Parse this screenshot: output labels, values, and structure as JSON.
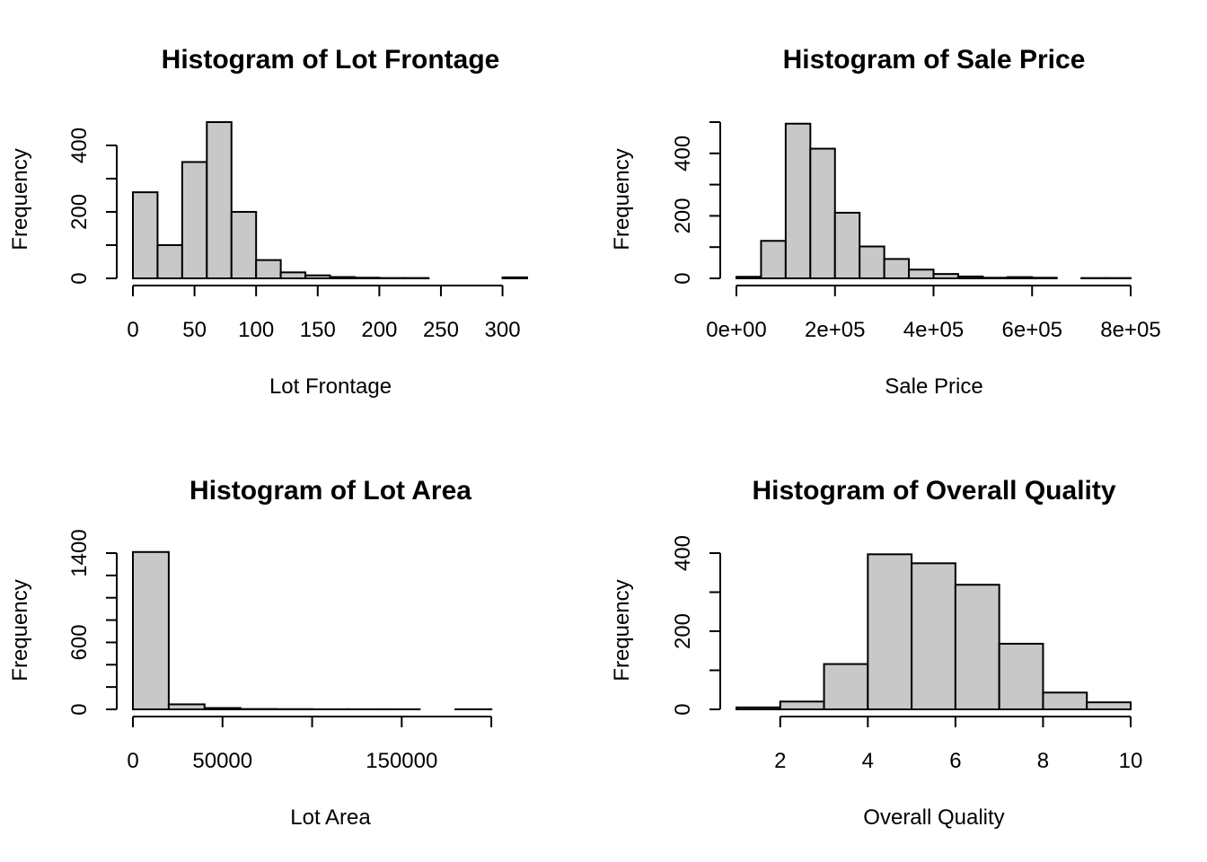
{
  "colors": {
    "bar_fill": "#c8c8c8",
    "bar_stroke": "#000000",
    "background": "#ffffff"
  },
  "chart_data": [
    {
      "type": "bar",
      "title": "Histogram of Lot Frontage",
      "xlabel": "Lot Frontage",
      "ylabel": "Frequency",
      "bin_edges": [
        0,
        20,
        40,
        60,
        80,
        100,
        120,
        140,
        160,
        180,
        200,
        220,
        240,
        260,
        280,
        300,
        320
      ],
      "values": [
        259,
        100,
        350,
        470,
        200,
        55,
        18,
        9,
        4,
        2,
        1,
        1,
        0,
        0,
        0,
        3
      ],
      "xlim": [
        0,
        320
      ],
      "ylim": [
        0,
        470
      ],
      "x_ticks": [
        0,
        50,
        100,
        150,
        200,
        250,
        300
      ],
      "x_tick_labels": [
        "0",
        "50",
        "100",
        "150",
        "200",
        "250",
        "300"
      ],
      "y_ticks": [
        0,
        100,
        200,
        300,
        400
      ],
      "y_tick_labels": [
        "0",
        "",
        "200",
        "",
        "400"
      ],
      "grid": false,
      "legend": "none"
    },
    {
      "type": "bar",
      "title": "Histogram of Sale Price",
      "xlabel": "Sale Price",
      "ylabel": "Frequency",
      "bin_edges": [
        0,
        50000,
        100000,
        150000,
        200000,
        250000,
        300000,
        350000,
        400000,
        450000,
        500000,
        550000,
        600000,
        650000,
        700000,
        750000,
        800000
      ],
      "values": [
        5,
        120,
        495,
        415,
        210,
        102,
        62,
        28,
        14,
        6,
        2,
        4,
        2,
        0,
        1,
        1
      ],
      "xlim": [
        0,
        800000
      ],
      "ylim": [
        0,
        500
      ],
      "x_ticks": [
        0,
        200000,
        400000,
        600000,
        800000
      ],
      "x_tick_labels": [
        "0e+00",
        "2e+05",
        "4e+05",
        "6e+05",
        "8e+05"
      ],
      "y_ticks": [
        0,
        100,
        200,
        300,
        400,
        500
      ],
      "y_tick_labels": [
        "0",
        "",
        "200",
        "",
        "400",
        ""
      ],
      "grid": false,
      "legend": "none"
    },
    {
      "type": "bar",
      "title": "Histogram of Lot Area",
      "xlabel": "Lot Area",
      "ylabel": "Frequency",
      "bin_edges": [
        0,
        20000,
        40000,
        60000,
        80000,
        100000,
        120000,
        140000,
        160000,
        180000,
        200000,
        220000
      ],
      "values": [
        1410,
        45,
        12,
        3,
        2,
        1,
        1,
        1,
        0,
        1,
        0
      ],
      "xlim": [
        0,
        220000
      ],
      "ylim": [
        0,
        1400
      ],
      "x_ticks": [
        0,
        50000,
        100000,
        150000,
        200000
      ],
      "x_tick_labels": [
        "0",
        "50000",
        "",
        "150000",
        ""
      ],
      "y_ticks": [
        0,
        200,
        400,
        600,
        800,
        1000,
        1200,
        1400
      ],
      "y_tick_labels": [
        "0",
        "",
        "",
        "600",
        "",
        "",
        "",
        "1400"
      ],
      "grid": false,
      "legend": "none"
    },
    {
      "type": "bar",
      "title": "Histogram of Overall Quality",
      "xlabel": "Overall Quality",
      "ylabel": "Frequency",
      "bin_edges": [
        1,
        2,
        3,
        4,
        5,
        6,
        7,
        8,
        9,
        10
      ],
      "values": [
        5,
        20,
        116,
        397,
        374,
        319,
        168,
        43,
        18
      ],
      "xlim": [
        1,
        10
      ],
      "ylim": [
        0,
        400
      ],
      "x_ticks": [
        2,
        4,
        6,
        8,
        10
      ],
      "x_tick_labels": [
        "2",
        "4",
        "6",
        "8",
        "10"
      ],
      "y_ticks": [
        0,
        100,
        200,
        300,
        400
      ],
      "y_tick_labels": [
        "0",
        "",
        "200",
        "",
        "400"
      ],
      "grid": false,
      "legend": "none"
    }
  ]
}
